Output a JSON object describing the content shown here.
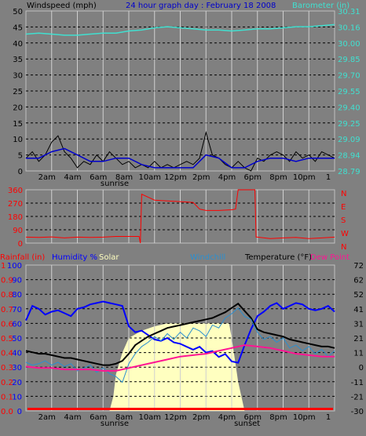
{
  "colors": {
    "background": "#808080",
    "plot_bg": "#808080",
    "grid": "#000000",
    "windspeed": "#000000",
    "gust": "#000000",
    "wind_avg": "#0000cc",
    "barometer": "#40e0d0",
    "direction": "#ff0000",
    "rainfall": "#ff0000",
    "humidity": "#0000ff",
    "solar": "#ffffc0",
    "windchill": "#2a8fd0",
    "temperature": "#000000",
    "dew_point": "#ff1493"
  },
  "top": {
    "left_title": "Windspeed (mph)",
    "center_title": "24 hour graph day : February 18 2008",
    "right_title": "Barometer (in)",
    "left_ticks": [
      "0",
      "5",
      "10",
      "15",
      "20",
      "25",
      "30",
      "35",
      "40",
      "45",
      "50"
    ],
    "right_ticks": [
      "28.79",
      "28.94",
      "29.09",
      "29.25",
      "29.40",
      "29.55",
      "29.70",
      "29.85",
      "30.00",
      "30.16",
      "30.31"
    ]
  },
  "mid": {
    "left_ticks": [
      "0",
      "90",
      "180",
      "270",
      "360"
    ],
    "right_labels": [
      "N",
      "E",
      "S",
      "W",
      "N"
    ]
  },
  "bottom": {
    "rainfall_label": "Rainfall (in)",
    "humidity_label": "Humidity %",
    "solar_label": "Solar",
    "windchill_label": "Windchill",
    "temperature_label": "Temperature (°F)",
    "dewpoint_label": "Dew Point",
    "humidity_ticks": [
      "0",
      "10",
      "20",
      "30",
      "40",
      "50",
      "60",
      "70",
      "80",
      "90",
      "100"
    ],
    "rain_ticks": [
      "0.0",
      "0.1",
      "0.2",
      "0.3",
      "0.4",
      "0.5",
      "0.6",
      "0.7",
      "0.8",
      "0.9",
      "1"
    ],
    "temp_ticks": [
      "-30",
      "-21",
      "-11",
      "0",
      "11",
      "21",
      "31",
      "41",
      "52",
      "62",
      "72"
    ]
  },
  "time_labels": [
    "2am",
    "4am",
    "6am",
    "8am",
    "10am",
    "12pm",
    "2pm",
    "4pm",
    "6pm",
    "8pm",
    "10pm",
    "1"
  ],
  "sunrise_label": "sunrise",
  "sunset_label": "sunset",
  "chart_data": [
    {
      "type": "line",
      "title": "24 hour graph day : February 18 2008",
      "ylabel": "Windspeed (mph)",
      "y2label": "Barometer (in)",
      "ylim": [
        0,
        50
      ],
      "y2lim": [
        28.79,
        30.31
      ],
      "xlim": [
        0,
        24
      ],
      "grid": true,
      "series": [
        {
          "name": "Barometer (in)",
          "axis": "right",
          "x": [
            0,
            1,
            2,
            3,
            4,
            5,
            6,
            7,
            8,
            9,
            10,
            11,
            12,
            13,
            14,
            15,
            16,
            17,
            18,
            19,
            20,
            21,
            22,
            23,
            24
          ],
          "values": [
            30.09,
            30.1,
            30.09,
            30.08,
            30.08,
            30.09,
            30.1,
            30.1,
            30.12,
            30.13,
            30.15,
            30.16,
            30.15,
            30.14,
            30.13,
            30.13,
            30.12,
            30.13,
            30.14,
            30.14,
            30.15,
            30.16,
            30.16,
            30.17,
            30.18
          ]
        },
        {
          "name": "Windspeed (mph)",
          "axis": "left",
          "x": [
            0,
            0.5,
            1,
            1.5,
            2,
            2.5,
            3,
            3.5,
            4,
            4.5,
            5,
            5.5,
            6,
            6.5,
            7,
            7.5,
            8,
            8.5,
            9,
            9.5,
            10,
            10.5,
            11,
            11.5,
            12,
            12.5,
            13,
            13.5,
            14,
            14.5,
            15,
            15.5,
            16,
            16.5,
            17,
            17.5,
            18,
            18.5,
            19,
            19.5,
            20,
            20.5,
            21,
            21.5,
            22,
            22.5,
            23,
            23.5,
            24
          ],
          "values": [
            4,
            6,
            3,
            5,
            9,
            11,
            6,
            4,
            1,
            3,
            2,
            5,
            3,
            6,
            4,
            2,
            3,
            1,
            2,
            1,
            3,
            1,
            2,
            1,
            2,
            3,
            2,
            4,
            12,
            5,
            4,
            2,
            1,
            3,
            1,
            0,
            4,
            3,
            5,
            6,
            5,
            3,
            6,
            4,
            5,
            3,
            6,
            5,
            4
          ]
        },
        {
          "name": "Wind average",
          "axis": "left",
          "x": [
            0,
            1,
            2,
            3,
            4,
            5,
            6,
            7,
            8,
            9,
            10,
            11,
            12,
            13,
            14,
            15,
            16,
            17,
            18,
            19,
            20,
            21,
            22,
            23,
            24
          ],
          "values": [
            4,
            4,
            6,
            7,
            5,
            3,
            3,
            4,
            4,
            2,
            1,
            1,
            1,
            1,
            5,
            4,
            1,
            1,
            3,
            4,
            4,
            3,
            4,
            4,
            4
          ]
        }
      ]
    },
    {
      "type": "line",
      "ylabel": "Wind direction",
      "ylim": [
        0,
        360
      ],
      "xlim": [
        0,
        24
      ],
      "grid": true,
      "series": [
        {
          "name": "Wind direction",
          "axis": "left",
          "x": [
            0,
            1,
            2,
            3,
            4,
            5,
            6,
            7,
            8,
            8.8,
            8.9,
            9,
            10,
            11,
            12,
            13,
            13.5,
            14,
            15,
            16,
            16.3,
            16.5,
            17,
            17.8,
            17.9,
            18,
            19,
            20,
            21,
            22,
            23,
            24
          ],
          "values": [
            40,
            38,
            42,
            35,
            40,
            38,
            40,
            45,
            45,
            45,
            0,
            330,
            290,
            285,
            280,
            275,
            230,
            220,
            220,
            225,
            230,
            360,
            360,
            360,
            40,
            40,
            30,
            35,
            38,
            30,
            35,
            40
          ]
        }
      ]
    },
    {
      "type": "line",
      "ylabel": "Humidity %",
      "y2label": "Temperature (°F)",
      "ylim": [
        0,
        100
      ],
      "y2lim": [
        -30,
        72
      ],
      "xlim": [
        0,
        24
      ],
      "grid": true,
      "series": [
        {
          "name": "Humidity",
          "axis": "left",
          "x": [
            0,
            0.5,
            1,
            1.5,
            2,
            2.5,
            3,
            3.5,
            4,
            4.5,
            5,
            5.5,
            6,
            6.5,
            7,
            7.5,
            8,
            8.5,
            9,
            9.5,
            10,
            10.5,
            11,
            11.5,
            12,
            12.5,
            13,
            13.5,
            14,
            14.5,
            15,
            15.5,
            16,
            16.5,
            17,
            17.5,
            18,
            18.5,
            19,
            19.5,
            20,
            20.5,
            21,
            21.5,
            22,
            22.5,
            23,
            23.5,
            24
          ],
          "values": [
            62,
            72,
            70,
            66,
            68,
            69,
            67,
            65,
            70,
            71,
            73,
            74,
            75,
            74,
            73,
            72,
            58,
            54,
            55,
            52,
            49,
            48,
            50,
            47,
            46,
            44,
            42,
            44,
            40,
            41,
            37,
            39,
            34,
            33,
            45,
            56,
            65,
            68,
            72,
            74,
            70,
            72,
            74,
            73,
            70,
            69,
            70,
            72,
            68
          ]
        },
        {
          "name": "Temperature",
          "axis": "right",
          "x": [
            0,
            0.5,
            1,
            1.5,
            2,
            2.5,
            3,
            3.5,
            4,
            4.5,
            5,
            5.5,
            6,
            6.5,
            7,
            7.5,
            8,
            8.5,
            9,
            9.5,
            10,
            10.5,
            11,
            11.5,
            12,
            12.5,
            13,
            13.5,
            14,
            14.5,
            15,
            15.5,
            16,
            16.5,
            17,
            17.5,
            18,
            18.5,
            19,
            19.5,
            20,
            20.5,
            21,
            21.5,
            22,
            22.5,
            23,
            23.5,
            24
          ],
          "values": [
            12,
            11,
            10,
            10,
            9,
            8,
            7,
            7,
            6,
            5,
            4,
            3,
            2,
            2,
            3,
            5,
            10,
            16,
            19,
            22,
            24,
            26,
            28,
            29,
            30,
            31,
            32,
            33,
            34,
            35,
            37,
            39,
            42,
            45,
            40,
            35,
            27,
            25,
            24,
            23,
            22,
            20,
            19,
            18,
            17,
            16,
            15,
            15,
            14
          ]
        },
        {
          "name": "Windchill",
          "axis": "right",
          "x": [
            0,
            0.5,
            1,
            1.5,
            2,
            2.5,
            3,
            3.5,
            4,
            4.5,
            5,
            5.5,
            6,
            6.5,
            7,
            7.5,
            8,
            8.5,
            9,
            9.5,
            10,
            10.5,
            11,
            11.5,
            12,
            12.5,
            13,
            13.5,
            14,
            14.5,
            15,
            15.5,
            16,
            16.5,
            17,
            17.5,
            18,
            18.5,
            19,
            19.5,
            20,
            20.5,
            21,
            21.5,
            22,
            22.5,
            23,
            23.5,
            24
          ],
          "values": [
            4,
            2,
            3,
            5,
            2,
            4,
            1,
            3,
            -2,
            0,
            2,
            -3,
            0,
            -4,
            -6,
            -10,
            3,
            10,
            15,
            18,
            22,
            19,
            24,
            20,
            25,
            21,
            28,
            26,
            22,
            30,
            28,
            35,
            38,
            42,
            36,
            34,
            25,
            20,
            22,
            18,
            21,
            14,
            16,
            12,
            15,
            10,
            13,
            8,
            12
          ]
        },
        {
          "name": "Dew Point",
          "axis": "right",
          "x": [
            0,
            1,
            2,
            3,
            4,
            5,
            6,
            7,
            8,
            9,
            10,
            11,
            12,
            13,
            14,
            15,
            16,
            17,
            18,
            19,
            20,
            21,
            22,
            23,
            24
          ],
          "values": [
            1,
            0,
            0,
            -1,
            -1,
            -1,
            -2,
            -2,
            0,
            2,
            4,
            6,
            8,
            9,
            10,
            12,
            14,
            16,
            15,
            14,
            12,
            10,
            9,
            8,
            8
          ]
        },
        {
          "name": "Solar",
          "axis": "left",
          "x": [
            0,
            6.5,
            6.8,
            7,
            7.5,
            8,
            9,
            10,
            11,
            12,
            13,
            14,
            15,
            15.8,
            16,
            16.5,
            17,
            24
          ],
          "values": [
            0,
            0,
            10,
            25,
            40,
            50,
            55,
            58,
            60,
            60,
            60,
            60,
            60,
            60,
            50,
            20,
            0,
            0
          ]
        },
        {
          "name": "Rainfall (in)",
          "axis": "left",
          "x": [
            0,
            24
          ],
          "values": [
            0.0,
            0.0
          ]
        }
      ]
    }
  ]
}
